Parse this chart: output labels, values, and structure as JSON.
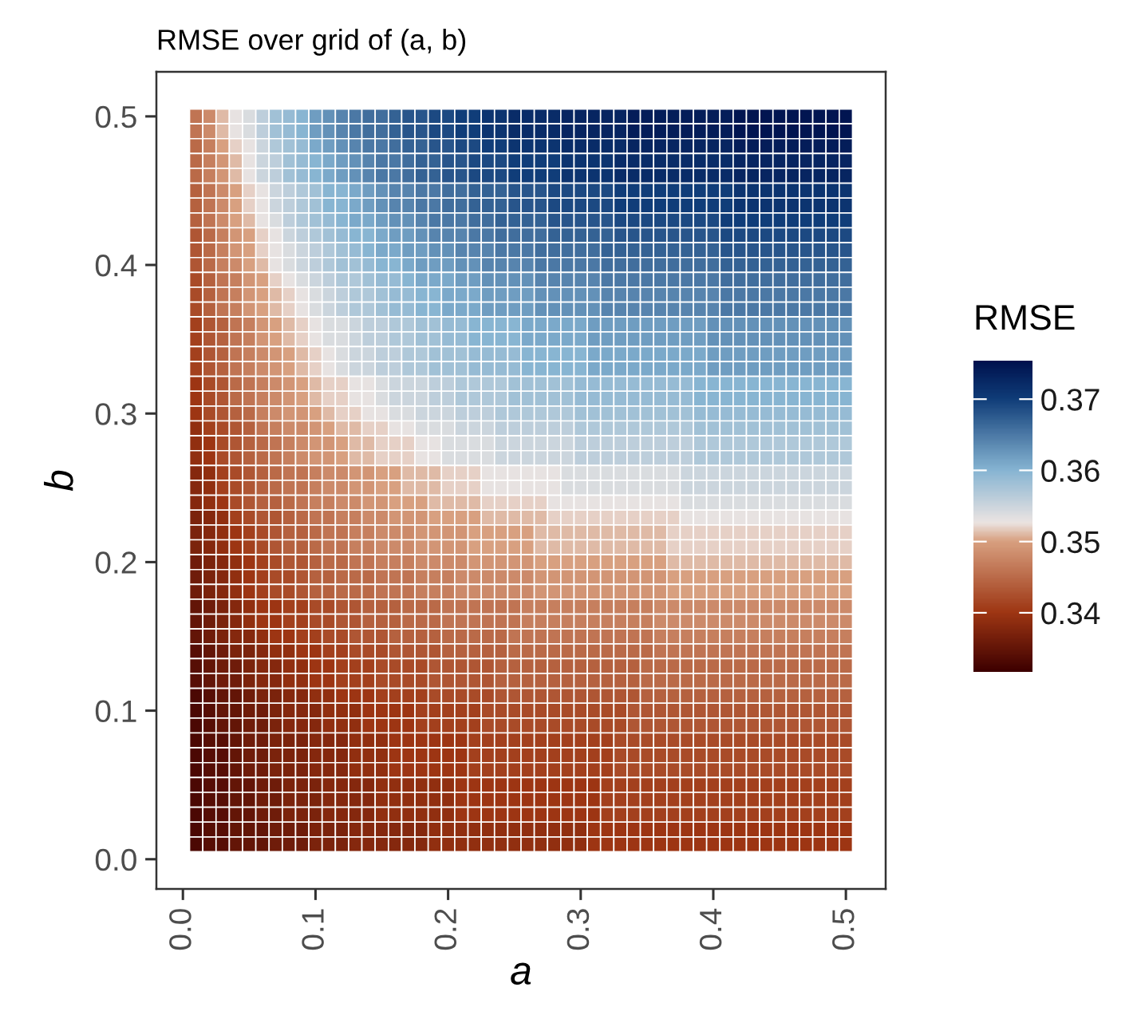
{
  "chart_data": {
    "type": "heatmap",
    "title": "RMSE over grid of (a, b)",
    "xlabel": "a",
    "ylabel": "b",
    "clabel": "RMSE",
    "x": [
      0.01,
      0.02,
      0.03,
      0.04,
      0.05,
      0.06,
      0.07,
      0.08,
      0.09,
      0.1,
      0.11,
      0.12,
      0.13,
      0.14,
      0.15,
      0.16,
      0.17,
      0.18,
      0.19,
      0.2,
      0.21,
      0.22,
      0.23,
      0.24,
      0.25,
      0.26,
      0.27,
      0.28,
      0.29,
      0.3,
      0.31,
      0.32,
      0.33,
      0.34,
      0.35,
      0.36,
      0.37,
      0.38,
      0.39,
      0.4,
      0.41,
      0.42,
      0.43,
      0.44,
      0.45,
      0.46,
      0.47,
      0.48,
      0.49,
      0.5
    ],
    "y": [
      0.5,
      0.49,
      0.48,
      0.47,
      0.46,
      0.45,
      0.44,
      0.43,
      0.42,
      0.41,
      0.4,
      0.39,
      0.38,
      0.37,
      0.36,
      0.35,
      0.34,
      0.33,
      0.32,
      0.31,
      0.3,
      0.29,
      0.28,
      0.27,
      0.26,
      0.25,
      0.24,
      0.23,
      0.22,
      0.21,
      0.2,
      0.19,
      0.18,
      0.17,
      0.16,
      0.15,
      0.14,
      0.13,
      0.12,
      0.11,
      0.1,
      0.09,
      0.08,
      0.07,
      0.06,
      0.05,
      0.04,
      0.03,
      0.02,
      0.01
    ],
    "xlim": [
      -0.02,
      0.53
    ],
    "ylim": [
      -0.02,
      0.53
    ],
    "xticks": [
      {
        "value": 0,
        "label": "0.0"
      },
      0.1,
      0.2,
      0.3,
      0.4,
      0.5
    ],
    "yticks": [
      {
        "value": 0,
        "label": "0.0"
      },
      0.1,
      0.2,
      0.3,
      0.4,
      0.5
    ],
    "clim": [
      0.3317,
      0.3754
    ],
    "cticks": [
      0.34,
      0.35,
      0.36,
      0.37
    ],
    "cells": [
      [
        0.346,
        0.348,
        0.351,
        0.353,
        0.354,
        0.356,
        0.358,
        0.359,
        0.36,
        0.362,
        0.363,
        0.364,
        0.365,
        0.366,
        0.366,
        0.367,
        0.368,
        0.368,
        0.369,
        0.369,
        0.37,
        0.37,
        0.371,
        0.371,
        0.372,
        0.372,
        0.372,
        0.372,
        0.373,
        0.373,
        0.373,
        0.373,
        0.373,
        0.374,
        0.374,
        0.374,
        0.374,
        0.374,
        0.374,
        0.374,
        0.374,
        0.375,
        0.375,
        0.375,
        0.375,
        0.375,
        0.375,
        0.375,
        0.375,
        0.375
      ],
      [
        0.346,
        0.348,
        0.351,
        0.353,
        0.354,
        0.356,
        0.358,
        0.359,
        0.36,
        0.362,
        0.363,
        0.364,
        0.365,
        0.366,
        0.366,
        0.367,
        0.368,
        0.368,
        0.369,
        0.369,
        0.37,
        0.37,
        0.371,
        0.371,
        0.372,
        0.372,
        0.372,
        0.372,
        0.373,
        0.373,
        0.373,
        0.373,
        0.373,
        0.374,
        0.374,
        0.374,
        0.374,
        0.374,
        0.374,
        0.374,
        0.374,
        0.375,
        0.375,
        0.375,
        0.375,
        0.375,
        0.375,
        0.375,
        0.375,
        0.375
      ],
      [
        0.345,
        0.347,
        0.35,
        0.352,
        0.353,
        0.355,
        0.357,
        0.358,
        0.359,
        0.361,
        0.362,
        0.363,
        0.364,
        0.365,
        0.365,
        0.366,
        0.367,
        0.367,
        0.368,
        0.368,
        0.369,
        0.369,
        0.37,
        0.37,
        0.371,
        0.371,
        0.371,
        0.371,
        0.372,
        0.372,
        0.372,
        0.372,
        0.372,
        0.373,
        0.373,
        0.373,
        0.373,
        0.373,
        0.373,
        0.373,
        0.373,
        0.374,
        0.374,
        0.374,
        0.374,
        0.374,
        0.374,
        0.374,
        0.374,
        0.374
      ],
      [
        0.345,
        0.347,
        0.349,
        0.351,
        0.353,
        0.355,
        0.356,
        0.358,
        0.359,
        0.36,
        0.361,
        0.362,
        0.363,
        0.364,
        0.365,
        0.365,
        0.366,
        0.367,
        0.367,
        0.368,
        0.368,
        0.369,
        0.369,
        0.369,
        0.37,
        0.37,
        0.37,
        0.37,
        0.371,
        0.371,
        0.371,
        0.371,
        0.372,
        0.372,
        0.372,
        0.372,
        0.372,
        0.372,
        0.372,
        0.372,
        0.372,
        0.373,
        0.373,
        0.373,
        0.373,
        0.373,
        0.373,
        0.373,
        0.373,
        0.373
      ],
      [
        0.345,
        0.347,
        0.349,
        0.351,
        0.353,
        0.355,
        0.356,
        0.358,
        0.359,
        0.36,
        0.361,
        0.362,
        0.363,
        0.364,
        0.365,
        0.365,
        0.366,
        0.367,
        0.367,
        0.368,
        0.368,
        0.369,
        0.369,
        0.369,
        0.37,
        0.37,
        0.37,
        0.37,
        0.371,
        0.371,
        0.371,
        0.371,
        0.372,
        0.372,
        0.372,
        0.372,
        0.372,
        0.372,
        0.372,
        0.372,
        0.372,
        0.373,
        0.373,
        0.373,
        0.373,
        0.373,
        0.373,
        0.373,
        0.373,
        0.373
      ],
      [
        0.344,
        0.346,
        0.348,
        0.35,
        0.352,
        0.353,
        0.355,
        0.356,
        0.357,
        0.358,
        0.36,
        0.36,
        0.361,
        0.362,
        0.363,
        0.364,
        0.364,
        0.365,
        0.365,
        0.366,
        0.366,
        0.367,
        0.367,
        0.367,
        0.368,
        0.368,
        0.368,
        0.369,
        0.369,
        0.369,
        0.369,
        0.369,
        0.37,
        0.37,
        0.37,
        0.37,
        0.37,
        0.37,
        0.37,
        0.37,
        0.37,
        0.371,
        0.371,
        0.371,
        0.371,
        0.371,
        0.371,
        0.371,
        0.371,
        0.371
      ],
      [
        0.344,
        0.346,
        0.348,
        0.35,
        0.352,
        0.353,
        0.355,
        0.356,
        0.357,
        0.358,
        0.36,
        0.36,
        0.361,
        0.362,
        0.363,
        0.364,
        0.364,
        0.365,
        0.365,
        0.366,
        0.366,
        0.367,
        0.367,
        0.367,
        0.368,
        0.368,
        0.368,
        0.369,
        0.369,
        0.369,
        0.369,
        0.369,
        0.37,
        0.37,
        0.37,
        0.37,
        0.37,
        0.37,
        0.37,
        0.37,
        0.37,
        0.371,
        0.371,
        0.371,
        0.371,
        0.371,
        0.371,
        0.371,
        0.371,
        0.371
      ],
      [
        0.344,
        0.346,
        0.348,
        0.35,
        0.351,
        0.353,
        0.354,
        0.356,
        0.357,
        0.358,
        0.359,
        0.36,
        0.361,
        0.361,
        0.362,
        0.363,
        0.363,
        0.364,
        0.365,
        0.365,
        0.365,
        0.366,
        0.366,
        0.367,
        0.367,
        0.367,
        0.367,
        0.368,
        0.368,
        0.368,
        0.368,
        0.368,
        0.369,
        0.369,
        0.369,
        0.369,
        0.369,
        0.369,
        0.369,
        0.369,
        0.37,
        0.37,
        0.37,
        0.37,
        0.37,
        0.37,
        0.37,
        0.37,
        0.37,
        0.37
      ],
      [
        0.343,
        0.345,
        0.347,
        0.349,
        0.35,
        0.352,
        0.353,
        0.355,
        0.356,
        0.357,
        0.358,
        0.359,
        0.36,
        0.36,
        0.361,
        0.362,
        0.362,
        0.363,
        0.364,
        0.364,
        0.364,
        0.365,
        0.365,
        0.366,
        0.366,
        0.366,
        0.366,
        0.367,
        0.367,
        0.367,
        0.367,
        0.367,
        0.368,
        0.368,
        0.368,
        0.368,
        0.368,
        0.368,
        0.368,
        0.368,
        0.369,
        0.369,
        0.369,
        0.369,
        0.369,
        0.369,
        0.369,
        0.369,
        0.369,
        0.369
      ],
      [
        0.343,
        0.345,
        0.347,
        0.349,
        0.35,
        0.352,
        0.353,
        0.354,
        0.355,
        0.356,
        0.357,
        0.358,
        0.359,
        0.36,
        0.361,
        0.361,
        0.362,
        0.362,
        0.363,
        0.363,
        0.364,
        0.364,
        0.364,
        0.365,
        0.365,
        0.365,
        0.366,
        0.366,
        0.366,
        0.366,
        0.366,
        0.367,
        0.367,
        0.367,
        0.367,
        0.367,
        0.367,
        0.367,
        0.367,
        0.367,
        0.368,
        0.368,
        0.368,
        0.368,
        0.368,
        0.368,
        0.368,
        0.368,
        0.368,
        0.368
      ],
      [
        0.343,
        0.345,
        0.347,
        0.348,
        0.35,
        0.351,
        0.353,
        0.354,
        0.355,
        0.356,
        0.357,
        0.358,
        0.358,
        0.359,
        0.36,
        0.36,
        0.361,
        0.362,
        0.362,
        0.362,
        0.363,
        0.363,
        0.364,
        0.364,
        0.364,
        0.364,
        0.365,
        0.365,
        0.365,
        0.365,
        0.365,
        0.366,
        0.366,
        0.366,
        0.366,
        0.366,
        0.366,
        0.366,
        0.366,
        0.366,
        0.367,
        0.367,
        0.367,
        0.367,
        0.367,
        0.367,
        0.367,
        0.367,
        0.367,
        0.367
      ],
      [
        0.342,
        0.344,
        0.346,
        0.347,
        0.349,
        0.35,
        0.352,
        0.353,
        0.354,
        0.355,
        0.356,
        0.357,
        0.357,
        0.358,
        0.359,
        0.359,
        0.36,
        0.361,
        0.361,
        0.361,
        0.362,
        0.362,
        0.363,
        0.363,
        0.363,
        0.363,
        0.364,
        0.364,
        0.364,
        0.364,
        0.364,
        0.365,
        0.365,
        0.365,
        0.365,
        0.365,
        0.365,
        0.365,
        0.365,
        0.365,
        0.366,
        0.366,
        0.366,
        0.366,
        0.366,
        0.366,
        0.366,
        0.366,
        0.366,
        0.366
      ],
      [
        0.342,
        0.344,
        0.346,
        0.347,
        0.349,
        0.35,
        0.351,
        0.352,
        0.353,
        0.354,
        0.355,
        0.356,
        0.357,
        0.357,
        0.358,
        0.359,
        0.359,
        0.36,
        0.36,
        0.361,
        0.361,
        0.361,
        0.362,
        0.362,
        0.362,
        0.362,
        0.363,
        0.363,
        0.363,
        0.363,
        0.363,
        0.364,
        0.364,
        0.364,
        0.364,
        0.364,
        0.364,
        0.364,
        0.364,
        0.364,
        0.365,
        0.365,
        0.365,
        0.365,
        0.365,
        0.365,
        0.365,
        0.365,
        0.365,
        0.365
      ],
      [
        0.342,
        0.344,
        0.346,
        0.347,
        0.349,
        0.35,
        0.351,
        0.352,
        0.353,
        0.354,
        0.355,
        0.356,
        0.357,
        0.357,
        0.358,
        0.359,
        0.359,
        0.36,
        0.36,
        0.361,
        0.361,
        0.361,
        0.362,
        0.362,
        0.362,
        0.362,
        0.363,
        0.363,
        0.363,
        0.363,
        0.363,
        0.364,
        0.364,
        0.364,
        0.364,
        0.364,
        0.364,
        0.364,
        0.364,
        0.364,
        0.365,
        0.365,
        0.365,
        0.365,
        0.365,
        0.365,
        0.365,
        0.365,
        0.365,
        0.365
      ],
      [
        0.341,
        0.343,
        0.344,
        0.346,
        0.347,
        0.349,
        0.35,
        0.351,
        0.352,
        0.353,
        0.354,
        0.354,
        0.355,
        0.356,
        0.356,
        0.357,
        0.357,
        0.358,
        0.358,
        0.359,
        0.359,
        0.36,
        0.36,
        0.36,
        0.36,
        0.361,
        0.361,
        0.361,
        0.361,
        0.361,
        0.362,
        0.362,
        0.362,
        0.362,
        0.362,
        0.362,
        0.362,
        0.362,
        0.362,
        0.363,
        0.363,
        0.363,
        0.363,
        0.363,
        0.363,
        0.363,
        0.363,
        0.363,
        0.363,
        0.363
      ],
      [
        0.341,
        0.343,
        0.344,
        0.346,
        0.347,
        0.349,
        0.35,
        0.351,
        0.352,
        0.353,
        0.354,
        0.354,
        0.355,
        0.356,
        0.356,
        0.357,
        0.357,
        0.358,
        0.358,
        0.359,
        0.359,
        0.36,
        0.36,
        0.36,
        0.36,
        0.361,
        0.361,
        0.361,
        0.361,
        0.361,
        0.362,
        0.362,
        0.362,
        0.362,
        0.362,
        0.362,
        0.362,
        0.362,
        0.362,
        0.363,
        0.363,
        0.363,
        0.363,
        0.363,
        0.363,
        0.363,
        0.363,
        0.363,
        0.363,
        0.363
      ],
      [
        0.341,
        0.343,
        0.344,
        0.346,
        0.347,
        0.348,
        0.349,
        0.35,
        0.351,
        0.352,
        0.353,
        0.354,
        0.355,
        0.355,
        0.356,
        0.356,
        0.357,
        0.357,
        0.358,
        0.358,
        0.358,
        0.359,
        0.359,
        0.359,
        0.359,
        0.36,
        0.36,
        0.36,
        0.36,
        0.36,
        0.361,
        0.361,
        0.361,
        0.361,
        0.361,
        0.361,
        0.361,
        0.361,
        0.361,
        0.362,
        0.362,
        0.362,
        0.362,
        0.362,
        0.362,
        0.362,
        0.362,
        0.362,
        0.362,
        0.362
      ],
      [
        0.341,
        0.343,
        0.344,
        0.346,
        0.347,
        0.348,
        0.349,
        0.35,
        0.351,
        0.352,
        0.353,
        0.354,
        0.355,
        0.355,
        0.356,
        0.356,
        0.357,
        0.357,
        0.358,
        0.358,
        0.358,
        0.359,
        0.359,
        0.359,
        0.359,
        0.36,
        0.36,
        0.36,
        0.36,
        0.36,
        0.361,
        0.361,
        0.361,
        0.361,
        0.361,
        0.361,
        0.361,
        0.361,
        0.361,
        0.362,
        0.362,
        0.362,
        0.362,
        0.362,
        0.362,
        0.362,
        0.362,
        0.362,
        0.362,
        0.362
      ],
      [
        0.34,
        0.342,
        0.343,
        0.345,
        0.346,
        0.347,
        0.348,
        0.349,
        0.35,
        0.351,
        0.352,
        0.352,
        0.353,
        0.353,
        0.354,
        0.355,
        0.355,
        0.355,
        0.356,
        0.356,
        0.357,
        0.357,
        0.357,
        0.357,
        0.358,
        0.358,
        0.358,
        0.358,
        0.358,
        0.359,
        0.359,
        0.359,
        0.359,
        0.359,
        0.359,
        0.359,
        0.359,
        0.359,
        0.36,
        0.36,
        0.36,
        0.36,
        0.36,
        0.36,
        0.36,
        0.36,
        0.36,
        0.36,
        0.36,
        0.36
      ],
      [
        0.34,
        0.342,
        0.343,
        0.345,
        0.346,
        0.347,
        0.348,
        0.349,
        0.35,
        0.351,
        0.352,
        0.352,
        0.353,
        0.353,
        0.354,
        0.355,
        0.355,
        0.355,
        0.356,
        0.356,
        0.357,
        0.357,
        0.357,
        0.357,
        0.358,
        0.358,
        0.358,
        0.358,
        0.358,
        0.359,
        0.359,
        0.359,
        0.359,
        0.359,
        0.359,
        0.359,
        0.359,
        0.359,
        0.36,
        0.36,
        0.36,
        0.36,
        0.36,
        0.36,
        0.36,
        0.36,
        0.36,
        0.36,
        0.36,
        0.36
      ],
      [
        0.34,
        0.342,
        0.343,
        0.344,
        0.345,
        0.347,
        0.348,
        0.349,
        0.349,
        0.35,
        0.351,
        0.352,
        0.352,
        0.353,
        0.353,
        0.354,
        0.354,
        0.355,
        0.355,
        0.355,
        0.356,
        0.356,
        0.356,
        0.357,
        0.357,
        0.357,
        0.357,
        0.357,
        0.357,
        0.358,
        0.358,
        0.358,
        0.358,
        0.358,
        0.358,
        0.358,
        0.358,
        0.358,
        0.359,
        0.359,
        0.359,
        0.359,
        0.359,
        0.359,
        0.359,
        0.359,
        0.359,
        0.359,
        0.359,
        0.359
      ],
      [
        0.339,
        0.341,
        0.342,
        0.343,
        0.344,
        0.346,
        0.347,
        0.348,
        0.348,
        0.349,
        0.35,
        0.351,
        0.351,
        0.352,
        0.352,
        0.353,
        0.353,
        0.354,
        0.354,
        0.354,
        0.355,
        0.355,
        0.355,
        0.356,
        0.356,
        0.356,
        0.356,
        0.356,
        0.356,
        0.357,
        0.357,
        0.357,
        0.357,
        0.357,
        0.357,
        0.357,
        0.357,
        0.357,
        0.358,
        0.358,
        0.358,
        0.358,
        0.358,
        0.358,
        0.358,
        0.358,
        0.358,
        0.358,
        0.358,
        0.358
      ],
      [
        0.339,
        0.34,
        0.342,
        0.343,
        0.344,
        0.345,
        0.346,
        0.347,
        0.348,
        0.349,
        0.349,
        0.35,
        0.351,
        0.351,
        0.352,
        0.352,
        0.352,
        0.353,
        0.353,
        0.354,
        0.354,
        0.354,
        0.354,
        0.355,
        0.355,
        0.355,
        0.355,
        0.355,
        0.355,
        0.356,
        0.356,
        0.356,
        0.356,
        0.356,
        0.356,
        0.356,
        0.356,
        0.356,
        0.357,
        0.357,
        0.357,
        0.357,
        0.357,
        0.357,
        0.357,
        0.357,
        0.357,
        0.357,
        0.357,
        0.357
      ],
      [
        0.339,
        0.34,
        0.342,
        0.343,
        0.344,
        0.345,
        0.346,
        0.347,
        0.348,
        0.349,
        0.349,
        0.35,
        0.351,
        0.351,
        0.352,
        0.352,
        0.352,
        0.353,
        0.353,
        0.354,
        0.354,
        0.354,
        0.354,
        0.355,
        0.355,
        0.355,
        0.355,
        0.355,
        0.355,
        0.356,
        0.356,
        0.356,
        0.356,
        0.356,
        0.356,
        0.356,
        0.356,
        0.356,
        0.357,
        0.357,
        0.357,
        0.357,
        0.357,
        0.357,
        0.357,
        0.357,
        0.357,
        0.357,
        0.357,
        0.357
      ],
      [
        0.338,
        0.339,
        0.341,
        0.342,
        0.343,
        0.344,
        0.345,
        0.346,
        0.346,
        0.347,
        0.348,
        0.348,
        0.349,
        0.349,
        0.35,
        0.35,
        0.351,
        0.351,
        0.351,
        0.352,
        0.352,
        0.352,
        0.353,
        0.353,
        0.353,
        0.353,
        0.353,
        0.353,
        0.354,
        0.354,
        0.354,
        0.354,
        0.354,
        0.354,
        0.354,
        0.354,
        0.354,
        0.355,
        0.355,
        0.355,
        0.355,
        0.355,
        0.355,
        0.355,
        0.355,
        0.355,
        0.355,
        0.355,
        0.355,
        0.355
      ],
      [
        0.338,
        0.339,
        0.341,
        0.342,
        0.343,
        0.344,
        0.345,
        0.346,
        0.346,
        0.347,
        0.348,
        0.348,
        0.349,
        0.349,
        0.35,
        0.35,
        0.351,
        0.351,
        0.351,
        0.352,
        0.352,
        0.352,
        0.353,
        0.353,
        0.353,
        0.353,
        0.353,
        0.353,
        0.354,
        0.354,
        0.354,
        0.354,
        0.354,
        0.354,
        0.354,
        0.354,
        0.354,
        0.355,
        0.355,
        0.355,
        0.355,
        0.355,
        0.355,
        0.355,
        0.355,
        0.355,
        0.355,
        0.355,
        0.355,
        0.355
      ],
      [
        0.338,
        0.339,
        0.34,
        0.342,
        0.343,
        0.344,
        0.344,
        0.345,
        0.346,
        0.347,
        0.347,
        0.348,
        0.348,
        0.349,
        0.349,
        0.35,
        0.35,
        0.35,
        0.351,
        0.351,
        0.351,
        0.351,
        0.352,
        0.352,
        0.352,
        0.352,
        0.352,
        0.353,
        0.353,
        0.353,
        0.353,
        0.353,
        0.353,
        0.353,
        0.353,
        0.353,
        0.353,
        0.354,
        0.354,
        0.354,
        0.354,
        0.354,
        0.354,
        0.354,
        0.354,
        0.354,
        0.354,
        0.354,
        0.354,
        0.354
      ],
      [
        0.337,
        0.338,
        0.339,
        0.341,
        0.342,
        0.343,
        0.343,
        0.344,
        0.345,
        0.346,
        0.346,
        0.347,
        0.347,
        0.348,
        0.348,
        0.349,
        0.349,
        0.349,
        0.35,
        0.35,
        0.35,
        0.35,
        0.351,
        0.351,
        0.351,
        0.351,
        0.351,
        0.352,
        0.352,
        0.352,
        0.352,
        0.352,
        0.352,
        0.352,
        0.352,
        0.352,
        0.352,
        0.353,
        0.353,
        0.353,
        0.353,
        0.353,
        0.353,
        0.353,
        0.353,
        0.353,
        0.353,
        0.353,
        0.353,
        0.353
      ],
      [
        0.337,
        0.338,
        0.339,
        0.34,
        0.341,
        0.342,
        0.343,
        0.344,
        0.344,
        0.345,
        0.346,
        0.346,
        0.347,
        0.347,
        0.348,
        0.348,
        0.348,
        0.349,
        0.349,
        0.349,
        0.349,
        0.35,
        0.35,
        0.35,
        0.35,
        0.35,
        0.351,
        0.351,
        0.351,
        0.351,
        0.351,
        0.351,
        0.351,
        0.351,
        0.351,
        0.351,
        0.352,
        0.352,
        0.352,
        0.352,
        0.352,
        0.352,
        0.352,
        0.352,
        0.352,
        0.352,
        0.352,
        0.352,
        0.352,
        0.352
      ],
      [
        0.337,
        0.338,
        0.339,
        0.34,
        0.341,
        0.342,
        0.343,
        0.344,
        0.344,
        0.345,
        0.346,
        0.346,
        0.347,
        0.347,
        0.348,
        0.348,
        0.348,
        0.349,
        0.349,
        0.349,
        0.349,
        0.35,
        0.35,
        0.35,
        0.35,
        0.35,
        0.351,
        0.351,
        0.351,
        0.351,
        0.351,
        0.351,
        0.351,
        0.351,
        0.351,
        0.351,
        0.352,
        0.352,
        0.352,
        0.352,
        0.352,
        0.352,
        0.352,
        0.352,
        0.352,
        0.352,
        0.352,
        0.352,
        0.352,
        0.352
      ],
      [
        0.336,
        0.337,
        0.338,
        0.339,
        0.34,
        0.341,
        0.342,
        0.343,
        0.343,
        0.344,
        0.345,
        0.345,
        0.346,
        0.346,
        0.347,
        0.347,
        0.347,
        0.348,
        0.348,
        0.348,
        0.348,
        0.349,
        0.349,
        0.349,
        0.349,
        0.349,
        0.35,
        0.35,
        0.35,
        0.35,
        0.35,
        0.35,
        0.35,
        0.35,
        0.35,
        0.35,
        0.351,
        0.351,
        0.351,
        0.351,
        0.351,
        0.351,
        0.351,
        0.351,
        0.351,
        0.351,
        0.351,
        0.351,
        0.351,
        0.351
      ],
      [
        0.336,
        0.337,
        0.338,
        0.339,
        0.34,
        0.341,
        0.342,
        0.342,
        0.343,
        0.344,
        0.344,
        0.345,
        0.345,
        0.345,
        0.346,
        0.346,
        0.346,
        0.347,
        0.347,
        0.347,
        0.348,
        0.348,
        0.348,
        0.348,
        0.348,
        0.348,
        0.349,
        0.349,
        0.349,
        0.349,
        0.349,
        0.349,
        0.349,
        0.349,
        0.349,
        0.349,
        0.35,
        0.35,
        0.35,
        0.35,
        0.35,
        0.35,
        0.35,
        0.35,
        0.35,
        0.35,
        0.35,
        0.35,
        0.35,
        0.35
      ],
      [
        0.336,
        0.337,
        0.338,
        0.339,
        0.34,
        0.341,
        0.342,
        0.342,
        0.343,
        0.344,
        0.344,
        0.345,
        0.345,
        0.345,
        0.346,
        0.346,
        0.346,
        0.347,
        0.347,
        0.347,
        0.348,
        0.348,
        0.348,
        0.348,
        0.348,
        0.348,
        0.349,
        0.349,
        0.349,
        0.349,
        0.349,
        0.349,
        0.349,
        0.349,
        0.349,
        0.349,
        0.35,
        0.35,
        0.35,
        0.35,
        0.35,
        0.35,
        0.35,
        0.35,
        0.35,
        0.35,
        0.35,
        0.35,
        0.35,
        0.35
      ],
      [
        0.335,
        0.336,
        0.337,
        0.338,
        0.339,
        0.34,
        0.34,
        0.341,
        0.341,
        0.342,
        0.342,
        0.343,
        0.343,
        0.344,
        0.344,
        0.344,
        0.345,
        0.345,
        0.345,
        0.346,
        0.346,
        0.346,
        0.346,
        0.346,
        0.346,
        0.347,
        0.347,
        0.347,
        0.347,
        0.347,
        0.347,
        0.347,
        0.347,
        0.347,
        0.347,
        0.348,
        0.348,
        0.348,
        0.348,
        0.348,
        0.348,
        0.348,
        0.348,
        0.348,
        0.348,
        0.348,
        0.348,
        0.348,
        0.348,
        0.348
      ],
      [
        0.335,
        0.336,
        0.337,
        0.338,
        0.339,
        0.34,
        0.34,
        0.341,
        0.341,
        0.342,
        0.342,
        0.343,
        0.343,
        0.344,
        0.344,
        0.344,
        0.345,
        0.345,
        0.345,
        0.346,
        0.346,
        0.346,
        0.346,
        0.346,
        0.346,
        0.347,
        0.347,
        0.347,
        0.347,
        0.347,
        0.347,
        0.347,
        0.347,
        0.347,
        0.347,
        0.348,
        0.348,
        0.348,
        0.348,
        0.348,
        0.348,
        0.348,
        0.348,
        0.348,
        0.348,
        0.348,
        0.348,
        0.348,
        0.348,
        0.348
      ],
      [
        0.335,
        0.336,
        0.337,
        0.338,
        0.338,
        0.339,
        0.34,
        0.34,
        0.341,
        0.341,
        0.342,
        0.342,
        0.343,
        0.343,
        0.343,
        0.344,
        0.344,
        0.344,
        0.344,
        0.345,
        0.345,
        0.345,
        0.345,
        0.345,
        0.346,
        0.346,
        0.346,
        0.346,
        0.346,
        0.346,
        0.346,
        0.346,
        0.346,
        0.346,
        0.346,
        0.347,
        0.347,
        0.347,
        0.347,
        0.347,
        0.347,
        0.347,
        0.347,
        0.347,
        0.347,
        0.347,
        0.347,
        0.347,
        0.347,
        0.347
      ],
      [
        0.334,
        0.335,
        0.336,
        0.337,
        0.337,
        0.338,
        0.339,
        0.339,
        0.34,
        0.34,
        0.341,
        0.341,
        0.342,
        0.342,
        0.342,
        0.343,
        0.343,
        0.343,
        0.343,
        0.344,
        0.344,
        0.344,
        0.344,
        0.344,
        0.345,
        0.345,
        0.345,
        0.345,
        0.345,
        0.345,
        0.345,
        0.345,
        0.345,
        0.345,
        0.345,
        0.346,
        0.346,
        0.346,
        0.346,
        0.346,
        0.346,
        0.346,
        0.346,
        0.346,
        0.346,
        0.346,
        0.346,
        0.346,
        0.346,
        0.346
      ],
      [
        0.334,
        0.335,
        0.336,
        0.336,
        0.337,
        0.338,
        0.338,
        0.339,
        0.339,
        0.34,
        0.34,
        0.341,
        0.341,
        0.341,
        0.342,
        0.342,
        0.342,
        0.342,
        0.343,
        0.343,
        0.343,
        0.343,
        0.343,
        0.344,
        0.344,
        0.344,
        0.344,
        0.344,
        0.344,
        0.344,
        0.344,
        0.344,
        0.344,
        0.344,
        0.345,
        0.345,
        0.345,
        0.345,
        0.345,
        0.345,
        0.345,
        0.345,
        0.345,
        0.345,
        0.345,
        0.345,
        0.345,
        0.345,
        0.345,
        0.345
      ],
      [
        0.334,
        0.335,
        0.336,
        0.336,
        0.337,
        0.338,
        0.338,
        0.339,
        0.339,
        0.34,
        0.34,
        0.341,
        0.341,
        0.341,
        0.342,
        0.342,
        0.342,
        0.342,
        0.343,
        0.343,
        0.343,
        0.343,
        0.343,
        0.344,
        0.344,
        0.344,
        0.344,
        0.344,
        0.344,
        0.344,
        0.344,
        0.344,
        0.344,
        0.344,
        0.345,
        0.345,
        0.345,
        0.345,
        0.345,
        0.345,
        0.345,
        0.345,
        0.345,
        0.345,
        0.345,
        0.345,
        0.345,
        0.345,
        0.345,
        0.345
      ],
      [
        0.333,
        0.334,
        0.335,
        0.335,
        0.336,
        0.337,
        0.337,
        0.338,
        0.338,
        0.339,
        0.339,
        0.34,
        0.34,
        0.34,
        0.341,
        0.341,
        0.341,
        0.341,
        0.342,
        0.342,
        0.342,
        0.342,
        0.342,
        0.343,
        0.343,
        0.343,
        0.343,
        0.343,
        0.343,
        0.343,
        0.343,
        0.343,
        0.343,
        0.343,
        0.344,
        0.344,
        0.344,
        0.344,
        0.344,
        0.344,
        0.344,
        0.344,
        0.344,
        0.344,
        0.344,
        0.344,
        0.344,
        0.344,
        0.344,
        0.344
      ],
      [
        0.333,
        0.334,
        0.335,
        0.335,
        0.336,
        0.336,
        0.337,
        0.338,
        0.338,
        0.338,
        0.339,
        0.339,
        0.339,
        0.34,
        0.34,
        0.34,
        0.34,
        0.341,
        0.341,
        0.341,
        0.341,
        0.341,
        0.342,
        0.342,
        0.342,
        0.342,
        0.342,
        0.342,
        0.342,
        0.342,
        0.342,
        0.342,
        0.342,
        0.343,
        0.343,
        0.343,
        0.343,
        0.343,
        0.343,
        0.343,
        0.343,
        0.343,
        0.343,
        0.343,
        0.343,
        0.343,
        0.343,
        0.343,
        0.343,
        0.343
      ],
      [
        0.333,
        0.334,
        0.335,
        0.335,
        0.336,
        0.336,
        0.337,
        0.338,
        0.338,
        0.338,
        0.339,
        0.339,
        0.339,
        0.34,
        0.34,
        0.34,
        0.34,
        0.341,
        0.341,
        0.341,
        0.341,
        0.341,
        0.342,
        0.342,
        0.342,
        0.342,
        0.342,
        0.342,
        0.342,
        0.342,
        0.342,
        0.342,
        0.342,
        0.343,
        0.343,
        0.343,
        0.343,
        0.343,
        0.343,
        0.343,
        0.343,
        0.343,
        0.343,
        0.343,
        0.343,
        0.343,
        0.343,
        0.343,
        0.343,
        0.343
      ],
      [
        0.333,
        0.334,
        0.334,
        0.335,
        0.336,
        0.336,
        0.337,
        0.337,
        0.337,
        0.338,
        0.338,
        0.338,
        0.339,
        0.339,
        0.339,
        0.34,
        0.34,
        0.34,
        0.34,
        0.34,
        0.34,
        0.341,
        0.341,
        0.341,
        0.341,
        0.341,
        0.341,
        0.341,
        0.341,
        0.341,
        0.341,
        0.341,
        0.342,
        0.342,
        0.342,
        0.342,
        0.342,
        0.342,
        0.342,
        0.342,
        0.342,
        0.342,
        0.342,
        0.342,
        0.342,
        0.342,
        0.342,
        0.342,
        0.342,
        0.342
      ],
      [
        0.333,
        0.334,
        0.334,
        0.335,
        0.336,
        0.336,
        0.337,
        0.337,
        0.337,
        0.338,
        0.338,
        0.338,
        0.339,
        0.339,
        0.339,
        0.34,
        0.34,
        0.34,
        0.34,
        0.34,
        0.34,
        0.341,
        0.341,
        0.341,
        0.341,
        0.341,
        0.341,
        0.341,
        0.341,
        0.341,
        0.341,
        0.341,
        0.342,
        0.342,
        0.342,
        0.342,
        0.342,
        0.342,
        0.342,
        0.342,
        0.342,
        0.342,
        0.342,
        0.342,
        0.342,
        0.342,
        0.342,
        0.342,
        0.342,
        0.342
      ],
      [
        0.333,
        0.334,
        0.334,
        0.335,
        0.336,
        0.336,
        0.337,
        0.337,
        0.337,
        0.338,
        0.338,
        0.338,
        0.339,
        0.339,
        0.339,
        0.34,
        0.34,
        0.34,
        0.34,
        0.34,
        0.34,
        0.341,
        0.341,
        0.341,
        0.341,
        0.341,
        0.341,
        0.341,
        0.341,
        0.341,
        0.341,
        0.341,
        0.342,
        0.342,
        0.342,
        0.342,
        0.342,
        0.342,
        0.342,
        0.342,
        0.342,
        0.342,
        0.342,
        0.342,
        0.342,
        0.342,
        0.342,
        0.342,
        0.342,
        0.342
      ],
      [
        0.333,
        0.334,
        0.334,
        0.335,
        0.335,
        0.336,
        0.336,
        0.337,
        0.337,
        0.337,
        0.338,
        0.338,
        0.338,
        0.338,
        0.339,
        0.339,
        0.339,
        0.339,
        0.339,
        0.339,
        0.34,
        0.34,
        0.34,
        0.34,
        0.34,
        0.34,
        0.34,
        0.34,
        0.34,
        0.34,
        0.34,
        0.341,
        0.341,
        0.341,
        0.341,
        0.341,
        0.341,
        0.341,
        0.341,
        0.341,
        0.341,
        0.341,
        0.341,
        0.341,
        0.341,
        0.341,
        0.341,
        0.341,
        0.341,
        0.341
      ],
      [
        0.333,
        0.334,
        0.334,
        0.335,
        0.335,
        0.336,
        0.336,
        0.337,
        0.337,
        0.337,
        0.338,
        0.338,
        0.338,
        0.338,
        0.339,
        0.339,
        0.339,
        0.339,
        0.339,
        0.339,
        0.34,
        0.34,
        0.34,
        0.34,
        0.34,
        0.34,
        0.34,
        0.34,
        0.34,
        0.34,
        0.34,
        0.341,
        0.341,
        0.341,
        0.341,
        0.341,
        0.341,
        0.341,
        0.341,
        0.341,
        0.341,
        0.341,
        0.341,
        0.341,
        0.341,
        0.341,
        0.341,
        0.341,
        0.341,
        0.341
      ],
      [
        0.333,
        0.334,
        0.334,
        0.335,
        0.335,
        0.336,
        0.336,
        0.337,
        0.337,
        0.337,
        0.338,
        0.338,
        0.338,
        0.338,
        0.339,
        0.339,
        0.339,
        0.339,
        0.339,
        0.339,
        0.34,
        0.34,
        0.34,
        0.34,
        0.34,
        0.34,
        0.34,
        0.34,
        0.34,
        0.34,
        0.34,
        0.341,
        0.341,
        0.341,
        0.341,
        0.341,
        0.341,
        0.341,
        0.341,
        0.341,
        0.341,
        0.341,
        0.341,
        0.341,
        0.341,
        0.341,
        0.341,
        0.341,
        0.341,
        0.341
      ],
      [
        0.333,
        0.334,
        0.334,
        0.335,
        0.335,
        0.335,
        0.336,
        0.336,
        0.336,
        0.337,
        0.337,
        0.337,
        0.338,
        0.338,
        0.338,
        0.338,
        0.338,
        0.338,
        0.339,
        0.339,
        0.339,
        0.339,
        0.339,
        0.339,
        0.339,
        0.339,
        0.339,
        0.339,
        0.339,
        0.339,
        0.34,
        0.34,
        0.34,
        0.34,
        0.34,
        0.34,
        0.34,
        0.34,
        0.34,
        0.34,
        0.34,
        0.34,
        0.34,
        0.34,
        0.34,
        0.34,
        0.34,
        0.34,
        0.34,
        0.34
      ],
      [
        0.333,
        0.334,
        0.334,
        0.335,
        0.335,
        0.335,
        0.336,
        0.336,
        0.336,
        0.337,
        0.337,
        0.337,
        0.338,
        0.338,
        0.338,
        0.338,
        0.338,
        0.338,
        0.339,
        0.339,
        0.339,
        0.339,
        0.339,
        0.339,
        0.339,
        0.339,
        0.339,
        0.339,
        0.339,
        0.339,
        0.34,
        0.34,
        0.34,
        0.34,
        0.34,
        0.34,
        0.34,
        0.34,
        0.34,
        0.34,
        0.34,
        0.34,
        0.34,
        0.34,
        0.34,
        0.34,
        0.34,
        0.34,
        0.34,
        0.34
      ]
    ]
  }
}
